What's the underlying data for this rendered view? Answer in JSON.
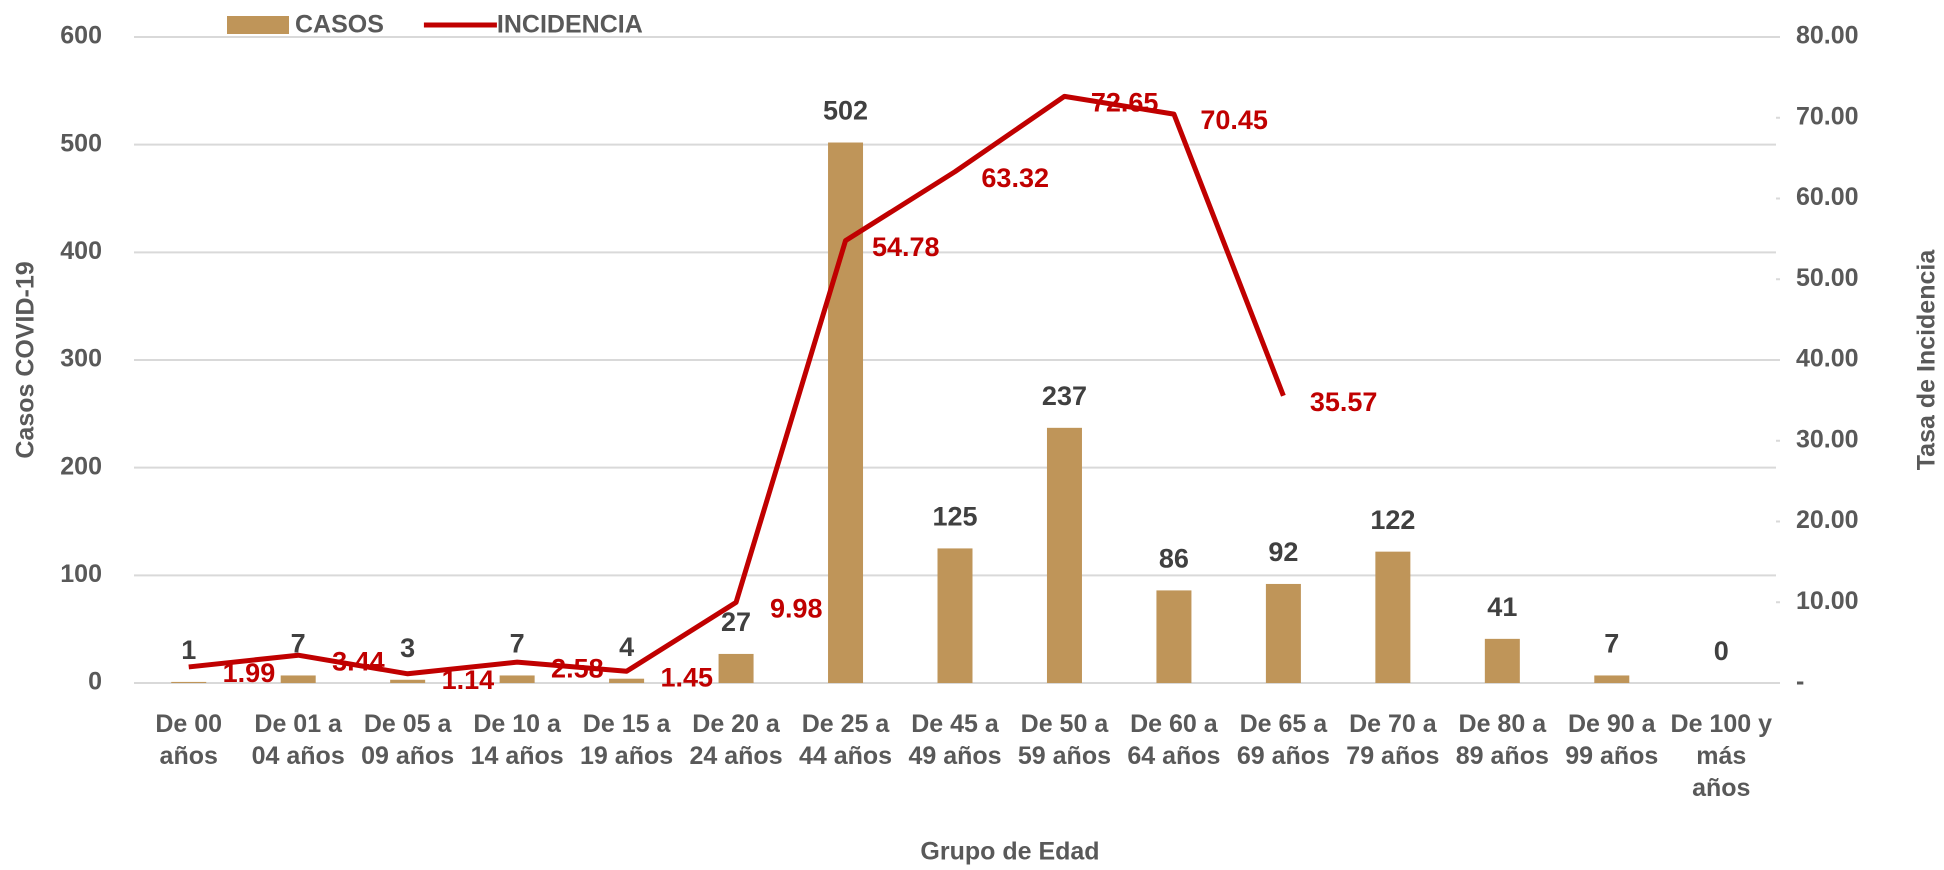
{
  "chart_data": {
    "type": "bar_line",
    "xlabel": "Grupo de Edad",
    "ylabel": "Casos COVID-19",
    "y2label": "Tasa de Incidencia",
    "categories": [
      "De 00 años",
      "De 01 a 04 años",
      "De 05 a 09 años",
      "De 10 a 14 años",
      "De 15 a 19 años",
      "De 20 a 24 años",
      "De 25 a 44 años",
      "De 45 a 49 años",
      "De 50 a 59 años",
      "De 60 a 64 años",
      "De 65 a 69 años",
      "De 70 a 79 años",
      "De 80 a 89 años",
      "De 90 a 99 años",
      "De 100 y más años"
    ],
    "series": [
      {
        "name": "CASOS",
        "color": "#bf9559",
        "type": "bar",
        "values": [
          1,
          7,
          3,
          7,
          4,
          27,
          502,
          125,
          237,
          86,
          92,
          122,
          41,
          7,
          0
        ]
      },
      {
        "name": "INCIDENCIA",
        "color": "#c00000",
        "type": "line",
        "axis": "y2",
        "values": [
          1.99,
          3.44,
          1.14,
          2.58,
          1.45,
          9.98,
          54.78,
          63.32,
          72.65,
          70.45,
          35.57,
          null,
          null,
          null,
          null
        ]
      }
    ],
    "ylim": [
      0,
      600
    ],
    "yticks": [
      0,
      100,
      200,
      300,
      400,
      500,
      600
    ],
    "y2lim": [
      0,
      80
    ],
    "y2ticks": [
      {
        "value": 0,
        "label": "-"
      },
      {
        "value": 10,
        "label": "10.00"
      },
      {
        "value": 20,
        "label": "20.00"
      },
      {
        "value": 30,
        "label": "30.00"
      },
      {
        "value": 40,
        "label": "40.00"
      },
      {
        "value": 50,
        "label": "50.00"
      },
      {
        "value": 60,
        "label": "60.00"
      },
      {
        "value": 70,
        "label": "70.00"
      },
      {
        "value": 80,
        "label": "80.00"
      }
    ],
    "grid": true,
    "legend": "top"
  }
}
